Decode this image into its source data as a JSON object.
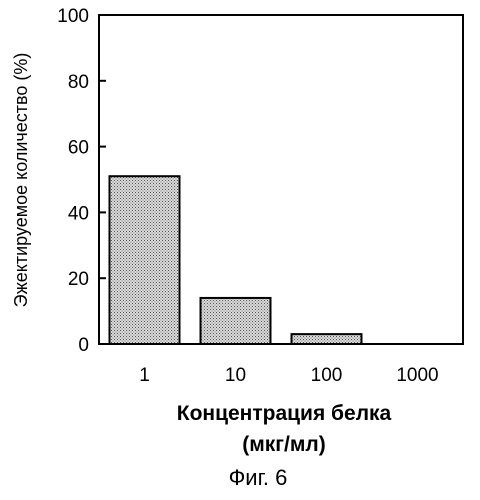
{
  "chart_data": {
    "type": "bar",
    "categories": [
      "1",
      "10",
      "100",
      "1000"
    ],
    "values": [
      51,
      14,
      3,
      0
    ],
    "title": "",
    "xlabel": [
      "Концентрация белка",
      "(мкг/мл)"
    ],
    "ylabel": "Эжектируемое количество (%)",
    "ylim": [
      0,
      100
    ],
    "yticks": [
      "0",
      "20",
      "40",
      "60",
      "80",
      "100"
    ],
    "bar_fill": "dotted-gray",
    "grid": false,
    "legend": "none"
  },
  "caption": "Фиг. 6",
  "colors": {
    "axis": "#000000",
    "bar_fill": "#d0d0d0",
    "bar_dots": "#555555"
  }
}
